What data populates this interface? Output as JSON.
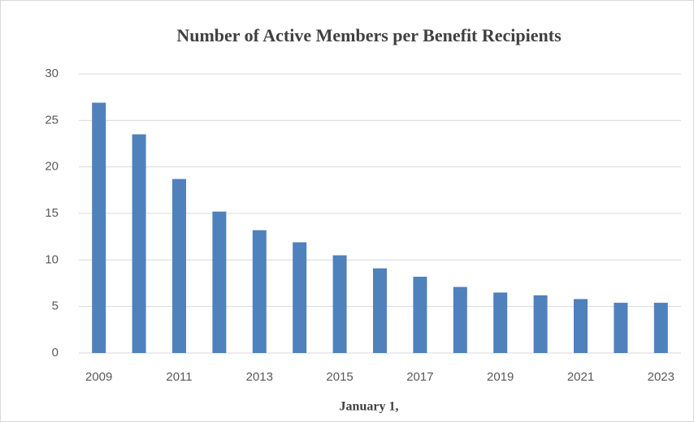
{
  "chart_data": {
    "type": "bar",
    "title": "Number of Active Members per Benefit Recipients",
    "x_label": "January 1,",
    "categories": [
      "2009",
      null,
      "2011",
      null,
      "2013",
      null,
      "2015",
      null,
      "2017",
      null,
      "2019",
      null,
      "2021",
      null,
      "2023"
    ],
    "values": [
      26.9,
      23.5,
      18.7,
      15.2,
      13.2,
      11.9,
      10.5,
      9.1,
      8.2,
      7.1,
      6.5,
      6.2,
      5.8,
      5.4,
      5.4
    ],
    "color": "#4f81bd",
    "ylim": [
      0,
      30
    ],
    "yticks": [
      0,
      5,
      10,
      15,
      20,
      25,
      30
    ],
    "grid": true
  }
}
